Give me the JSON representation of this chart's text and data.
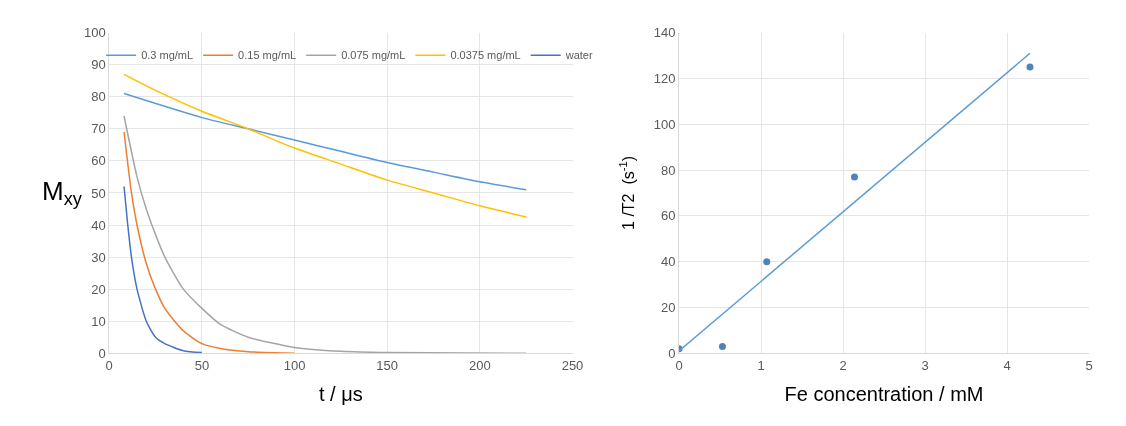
{
  "chart_data": [
    {
      "type": "line",
      "xlabel": "t / μs",
      "ylabel": "M$_{xy}$",
      "xlim": [
        0,
        250
      ],
      "xticks": [
        0,
        50,
        100,
        150,
        200,
        250
      ],
      "ylim": [
        0,
        100
      ],
      "yticks": [
        0,
        10,
        20,
        30,
        40,
        50,
        60,
        70,
        80,
        90,
        100
      ],
      "grid": true,
      "legend": "top",
      "marker": "none",
      "series": [
        {
          "name": "0.3 mg/mL",
          "color": "#5b9bd5",
          "x": [
            8,
            50,
            75,
            100,
            125,
            150,
            175,
            200,
            225
          ],
          "values": [
            81,
            73.5,
            70,
            66.5,
            63,
            59.5,
            56.5,
            53.5,
            51
          ]
        },
        {
          "name": "0.15 mg/mL",
          "color": "#ed7d31",
          "x": [
            8,
            12,
            15,
            20,
            25,
            30,
            40,
            50,
            60,
            75,
            100
          ],
          "values": [
            69,
            50,
            40,
            28,
            20,
            14,
            7,
            3,
            1.5,
            0.5,
            0
          ]
        },
        {
          "name": "0.075 mg/mL",
          "color": "#a5a5a5",
          "x": [
            8,
            15,
            20,
            25,
            30,
            40,
            50,
            60,
            75,
            100,
            125,
            150,
            225
          ],
          "values": [
            74,
            55,
            45,
            37,
            30,
            20,
            14,
            9,
            5,
            1.8,
            0.6,
            0.2,
            0
          ]
        },
        {
          "name": "0.0375 mg/mL",
          "color": "#ffc000",
          "x": [
            8,
            25,
            50,
            75,
            100,
            125,
            150,
            175,
            200,
            225
          ],
          "values": [
            87,
            82,
            75.5,
            70,
            64,
            59,
            54,
            50,
            46,
            42.5
          ]
        },
        {
          "name": "water",
          "color": "#4472c4",
          "x": [
            8,
            10,
            12,
            15,
            20,
            25,
            30,
            40,
            50
          ],
          "values": [
            52,
            40,
            30,
            20,
            10,
            5,
            3,
            0.8,
            0.2
          ]
        }
      ]
    },
    {
      "type": "scatter",
      "xlabel": "Fe concentration / mM",
      "ylabel": "1 /T2  (s$^{-1}$)",
      "xlim": [
        0,
        5
      ],
      "xticks": [
        0,
        1,
        2,
        3,
        4,
        5
      ],
      "ylim": [
        0,
        140
      ],
      "yticks": [
        0,
        20,
        40,
        60,
        80,
        100,
        120,
        140
      ],
      "grid": true,
      "legend": false,
      "series": [
        {
          "marker": "circle",
          "color": "#4f81bd",
          "x": [
            0,
            0.53,
            1.07,
            2.14,
            4.28
          ],
          "values": [
            2,
            3,
            40,
            77,
            125
          ]
        },
        {
          "type": "line",
          "marker": "none",
          "color": "#5b9bd5",
          "x": [
            0,
            4.28
          ],
          "values": [
            1,
            131
          ]
        }
      ]
    }
  ]
}
